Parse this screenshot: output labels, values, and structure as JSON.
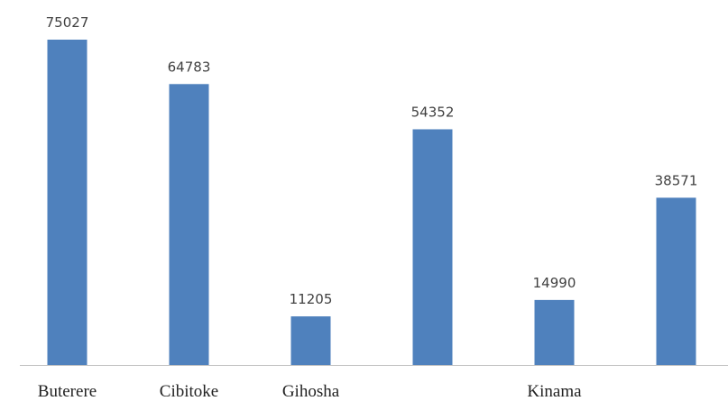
{
  "chart_data": {
    "type": "bar",
    "categories": [
      "Buterere",
      "Cibitoke",
      "Gihosha",
      null,
      "Kinama",
      null
    ],
    "values": [
      75027,
      64783,
      11205,
      54352,
      14990,
      38571
    ],
    "color": "#4f81bd"
  }
}
